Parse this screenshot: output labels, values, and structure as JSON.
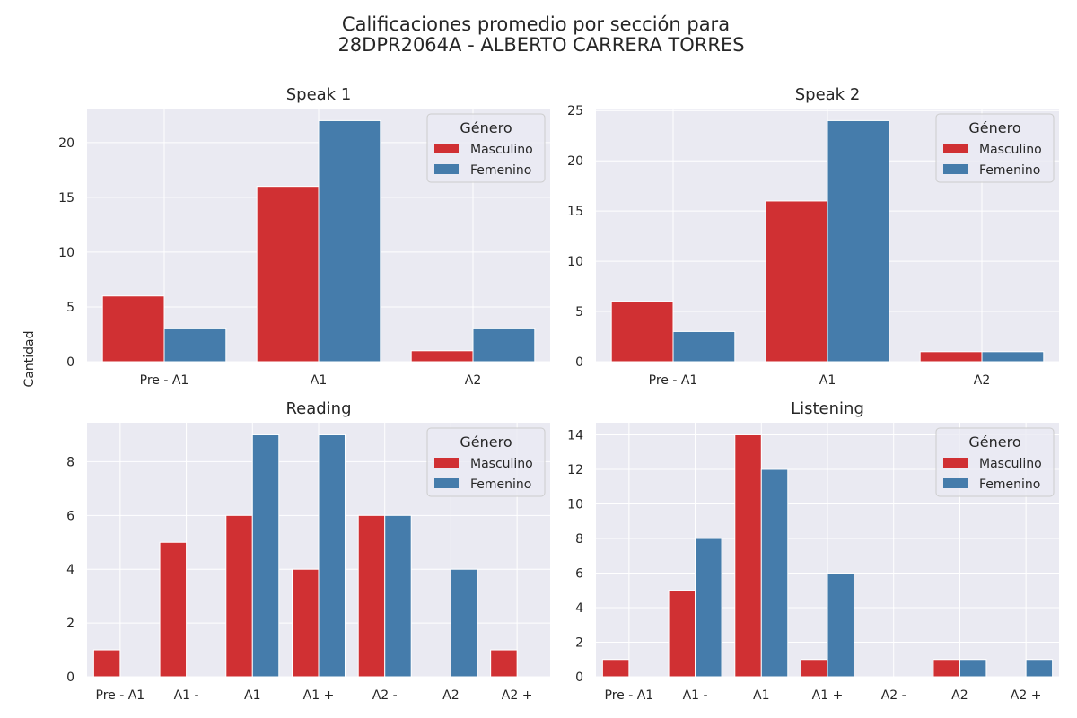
{
  "figure": {
    "title_line1": "Calificaciones promedio por sección para",
    "title_line2": "28DPR2064A - ALBERTO CARRERA TORRES",
    "ylabel": "Cantidad"
  },
  "colors": {
    "Masculino": "#d03033",
    "Femenino": "#457cab",
    "panel_bg": "#eaeaf2",
    "grid": "#ffffff",
    "text": "#262626"
  },
  "chart_data": [
    {
      "type": "bar",
      "title": "Speak 1",
      "categories": [
        "Pre - A1",
        "A1",
        "A2"
      ],
      "series": [
        {
          "name": "Masculino",
          "values": [
            6,
            16,
            1
          ]
        },
        {
          "name": "Femenino",
          "values": [
            3,
            22,
            3
          ]
        }
      ],
      "ylim": [
        0,
        23.1
      ],
      "yticks": [
        0,
        5,
        10,
        15,
        20
      ],
      "legend": {
        "title": "Género",
        "position": "top-right"
      },
      "grid": true
    },
    {
      "type": "bar",
      "title": "Speak 2",
      "categories": [
        "Pre - A1",
        "A1",
        "A2"
      ],
      "series": [
        {
          "name": "Masculino",
          "values": [
            6,
            16,
            1
          ]
        },
        {
          "name": "Femenino",
          "values": [
            3,
            24,
            1
          ]
        }
      ],
      "ylim": [
        0,
        25.2
      ],
      "yticks": [
        0,
        5,
        10,
        15,
        20,
        25
      ],
      "legend": {
        "title": "Género",
        "position": "top-right"
      },
      "grid": true
    },
    {
      "type": "bar",
      "title": "Reading",
      "categories": [
        "Pre - A1",
        "A1 -",
        "A1",
        "A1 +",
        "A2 -",
        "A2",
        "A2 +"
      ],
      "series": [
        {
          "name": "Masculino",
          "values": [
            1,
            5,
            6,
            4,
            6,
            0,
            1
          ]
        },
        {
          "name": "Femenino",
          "values": [
            0,
            0,
            9,
            9,
            6,
            4,
            0
          ]
        }
      ],
      "ylim": [
        0,
        9.45
      ],
      "yticks": [
        0,
        2,
        4,
        6,
        8
      ],
      "legend": {
        "title": "Género",
        "position": "top-right"
      },
      "grid": true
    },
    {
      "type": "bar",
      "title": "Listening",
      "categories": [
        "Pre - A1",
        "A1 -",
        "A1",
        "A1 +",
        "A2 -",
        "A2",
        "A2 +"
      ],
      "series": [
        {
          "name": "Masculino",
          "values": [
            1,
            5,
            14,
            1,
            0,
            1,
            0
          ]
        },
        {
          "name": "Femenino",
          "values": [
            0,
            8,
            12,
            6,
            0,
            1,
            1
          ]
        }
      ],
      "ylim": [
        0,
        14.7
      ],
      "yticks": [
        0,
        2,
        4,
        6,
        8,
        10,
        12,
        14
      ],
      "legend": {
        "title": "Género",
        "position": "top-right"
      },
      "grid": true
    }
  ]
}
